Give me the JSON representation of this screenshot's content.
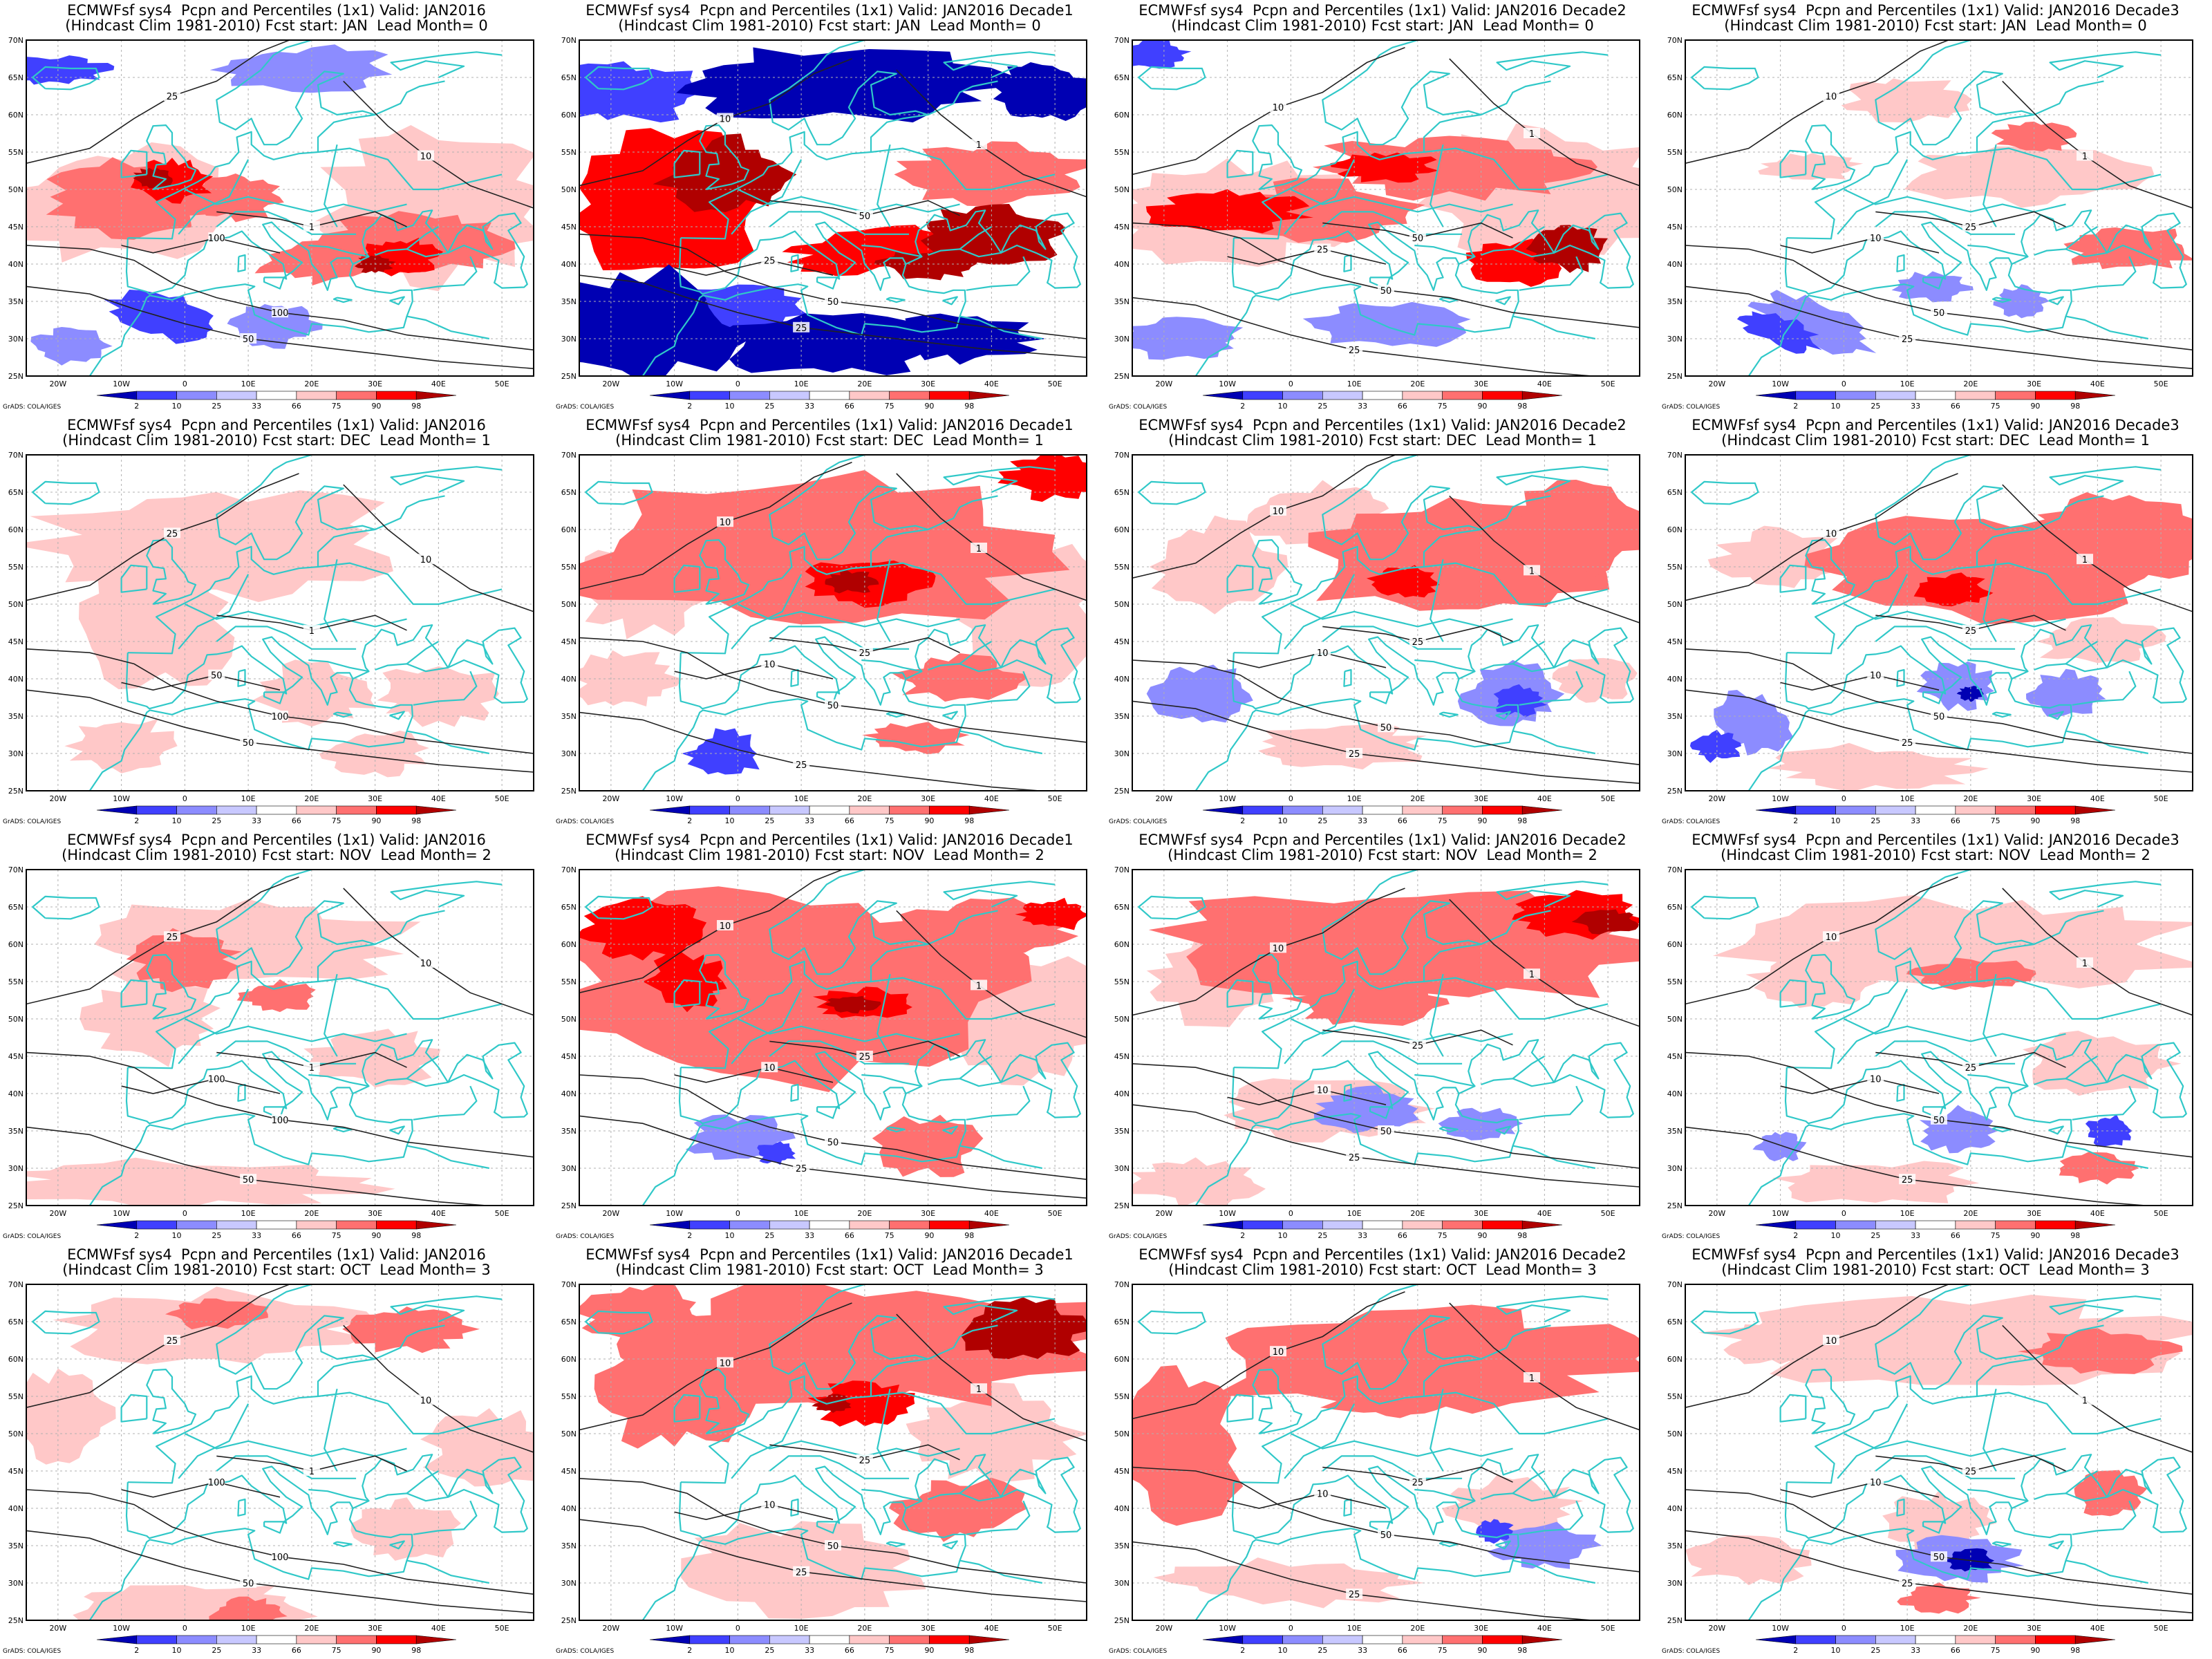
{
  "figure": {
    "credit": "GrADS: COLA/IGES",
    "lat_labels": [
      "70N",
      "65N",
      "60N",
      "55N",
      "50N",
      "45N",
      "40N",
      "35N",
      "30N",
      "25N"
    ],
    "lon_labels": [
      "20W",
      "10W",
      "0",
      "10E",
      "20E",
      "30E",
      "40E",
      "50E"
    ],
    "colorbar": {
      "levels": [
        "2",
        "10",
        "25",
        "33",
        "66",
        "75",
        "90",
        "98"
      ],
      "colors": [
        "#0000b3",
        "#4040ff",
        "#8c8cff",
        "#c8c8ff",
        "#ffffff",
        "#ffc8c8",
        "#ff7070",
        "#ff0000",
        "#b00000"
      ]
    },
    "colors": {
      "coast": "#30c8c8",
      "contour": "#222222",
      "grid": "#b0b0b0"
    }
  },
  "rows": [
    {
      "lead": 0,
      "panels": [
        {
          "line1": "ECMWFsf sys4  Pcpn and Percentiles (1x1) Valid: JAN2016",
          "line2": "(Hindcast Clim 1981-2010) Fcst start: JAN  Lead Month= 0",
          "contours": [
            "100",
            "50",
            "25",
            "10",
            "1",
            "100"
          ]
        },
        {
          "line1": "ECMWFsf sys4  Pcpn and Percentiles (1x1) Valid: JAN2016 Decade1",
          "line2": "(Hindcast Clim 1981-2010) Fcst start: JAN  Lead Month= 0",
          "contours": [
            "50",
            "25",
            "10",
            "1",
            "50",
            "25"
          ]
        },
        {
          "line1": "ECMWFsf sys4  Pcpn and Percentiles (1x1) Valid: JAN2016 Decade2",
          "line2": "(Hindcast Clim 1981-2010) Fcst start: JAN  Lead Month= 0",
          "contours": [
            "50",
            "25",
            "10",
            "1",
            "50",
            "25"
          ]
        },
        {
          "line1": "ECMWFsf sys4  Pcpn and Percentiles (1x1) Valid: JAN2016 Decade3",
          "line2": "(Hindcast Clim 1981-2010) Fcst start: JAN  Lead Month= 0",
          "contours": [
            "50",
            "25",
            "10",
            "1",
            "25",
            "10"
          ]
        }
      ]
    },
    {
      "lead": 1,
      "panels": [
        {
          "line1": "ECMWFsf sys4  Pcpn and Percentiles (1x1) Valid: JAN2016",
          "line2": "(Hindcast Clim 1981-2010) Fcst start: DEC  Lead Month= 1",
          "contours": [
            "100",
            "50",
            "25",
            "10",
            "1",
            "50"
          ]
        },
        {
          "line1": "ECMWFsf sys4  Pcpn and Percentiles (1x1) Valid: JAN2016 Decade1",
          "line2": "(Hindcast Clim 1981-2010) Fcst start: DEC  Lead Month= 1",
          "contours": [
            "50",
            "25",
            "10",
            "1",
            "25",
            "10"
          ]
        },
        {
          "line1": "ECMWFsf sys4  Pcpn and Percentiles (1x1) Valid: JAN2016 Decade2",
          "line2": "(Hindcast Clim 1981-2010) Fcst start: DEC  Lead Month= 1",
          "contours": [
            "50",
            "25",
            "10",
            "1",
            "25",
            "10"
          ]
        },
        {
          "line1": "ECMWFsf sys4  Pcpn and Percentiles (1x1) Valid: JAN2016 Decade3",
          "line2": "(Hindcast Clim 1981-2010) Fcst start: DEC  Lead Month= 1",
          "contours": [
            "50",
            "25",
            "10",
            "1",
            "25",
            "10"
          ]
        }
      ]
    },
    {
      "lead": 2,
      "panels": [
        {
          "line1": "ECMWFsf sys4  Pcpn and Percentiles (1x1) Valid: JAN2016",
          "line2": "(Hindcast Clim 1981-2010) Fcst start: NOV  Lead Month= 2",
          "contours": [
            "100",
            "50",
            "25",
            "10",
            "1",
            "100"
          ]
        },
        {
          "line1": "ECMWFsf sys4  Pcpn and Percentiles (1x1) Valid: JAN2016 Decade1",
          "line2": "(Hindcast Clim 1981-2010) Fcst start: NOV  Lead Month= 2",
          "contours": [
            "50",
            "25",
            "10",
            "1",
            "25",
            "10"
          ]
        },
        {
          "line1": "ECMWFsf sys4  Pcpn and Percentiles (1x1) Valid: JAN2016 Decade2",
          "line2": "(Hindcast Clim 1981-2010) Fcst start: NOV  Lead Month= 2",
          "contours": [
            "50",
            "25",
            "10",
            "1",
            "25",
            "10"
          ]
        },
        {
          "line1": "ECMWFsf sys4  Pcpn and Percentiles (1x1) Valid: JAN2016 Decade3",
          "line2": "(Hindcast Clim 1981-2010) Fcst start: NOV  Lead Month= 2",
          "contours": [
            "50",
            "25",
            "10",
            "1",
            "25",
            "10"
          ]
        }
      ]
    },
    {
      "lead": 3,
      "panels": [
        {
          "line1": "ECMWFsf sys4  Pcpn and Percentiles (1x1) Valid: JAN2016",
          "line2": "(Hindcast Clim 1981-2010) Fcst start: OCT  Lead Month= 3",
          "contours": [
            "100",
            "50",
            "25",
            "10",
            "1",
            "100"
          ]
        },
        {
          "line1": "ECMWFsf sys4  Pcpn and Percentiles (1x1) Valid: JAN2016 Decade1",
          "line2": "(Hindcast Clim 1981-2010) Fcst start: OCT  Lead Month= 3",
          "contours": [
            "50",
            "25",
            "10",
            "1",
            "25",
            "10"
          ]
        },
        {
          "line1": "ECMWFsf sys4  Pcpn and Percentiles (1x1) Valid: JAN2016 Decade2",
          "line2": "(Hindcast Clim 1981-2010) Fcst start: OCT  Lead Month= 3",
          "contours": [
            "50",
            "25",
            "10",
            "1",
            "25",
            "10"
          ]
        },
        {
          "line1": "ECMWFsf sys4  Pcpn and Percentiles (1x1) Valid: JAN2016 Decade3",
          "line2": "(Hindcast Clim 1981-2010) Fcst start: OCT  Lead Month= 3",
          "contours": [
            "50",
            "25",
            "10",
            "1",
            "25",
            "10"
          ]
        }
      ]
    }
  ]
}
